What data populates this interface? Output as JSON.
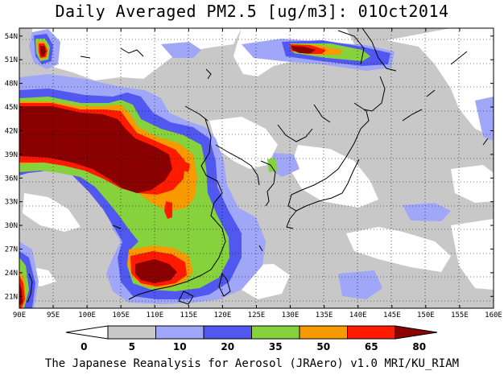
{
  "title": "Daily Averaged PM2.5 [ug/m3]: 01Oct2014",
  "credit": "The Japanese Reanalysis for Aerosol (JRAero) v1.0 MRI/KU_RIAM",
  "map": {
    "lon_range": [
      90,
      160
    ],
    "lat_range": [
      19.5,
      55
    ],
    "lon_ticks": [
      "90E",
      "95E",
      "100E",
      "105E",
      "110E",
      "115E",
      "120E",
      "125E",
      "130E",
      "135E",
      "140E",
      "145E",
      "150E",
      "155E",
      "160E"
    ],
    "lat_ticks": [
      "21N",
      "24N",
      "27N",
      "30N",
      "33N",
      "36N",
      "39N",
      "42N",
      "45N",
      "48N",
      "51N",
      "54N"
    ],
    "grid": "dotted"
  },
  "colorbar": {
    "levels": [
      "0",
      "5",
      "10",
      "20",
      "35",
      "50",
      "65",
      "80"
    ],
    "colors": [
      "#ffffff",
      "#c8c8c8",
      "#a0a6f8",
      "#5158f0",
      "#86d23c",
      "#f79a00",
      "#ff1a00",
      "#8b0000"
    ]
  }
}
